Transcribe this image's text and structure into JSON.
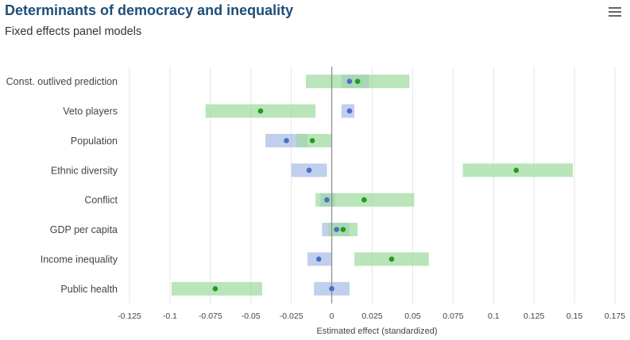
{
  "chart_data": {
    "type": "interval-dot",
    "title": "Determinants of democracy and inequality",
    "subtitle": "Fixed effects panel models",
    "xlabel": "Estimated effect (standardized)",
    "xlim": [
      -0.125,
      0.175
    ],
    "xticks": [
      "-0.125",
      "-0.1",
      "-0.075",
      "-0.05",
      "-0.025",
      "0",
      "0.025",
      "0.05",
      "0.075",
      "0.1",
      "0.125",
      "0.15",
      "0.175"
    ],
    "grid": true,
    "categories": [
      "Const. outlived prediction",
      "Veto players",
      "Population",
      "Ethnic diversity",
      "Conflict",
      "GDP per capita",
      "Income inequality",
      "Public health"
    ],
    "series": [
      {
        "color": "#4a6fc7",
        "band_color": "#a9bde8",
        "estimates": [
          0.011,
          0.011,
          -0.028,
          -0.014,
          -0.003,
          0.003,
          -0.008,
          0.0
        ],
        "low": [
          0.006,
          0.006,
          -0.041,
          -0.025,
          -0.007,
          -0.006,
          -0.015,
          -0.011
        ],
        "high": [
          0.023,
          0.014,
          -0.015,
          -0.003,
          0.002,
          0.011,
          0.0,
          0.011
        ]
      },
      {
        "color": "#1e9e1e",
        "band_color": "#9fd99f",
        "estimates": [
          0.016,
          -0.044,
          -0.012,
          0.114,
          0.02,
          0.007,
          0.037,
          -0.072
        ],
        "low": [
          -0.016,
          -0.078,
          -0.022,
          0.081,
          -0.01,
          -0.002,
          0.014,
          -0.099
        ],
        "high": [
          0.048,
          -0.01,
          0.0,
          0.149,
          0.051,
          0.016,
          0.06,
          -0.043
        ]
      }
    ]
  },
  "icons": {
    "menu": "hamburger-menu-icon"
  }
}
